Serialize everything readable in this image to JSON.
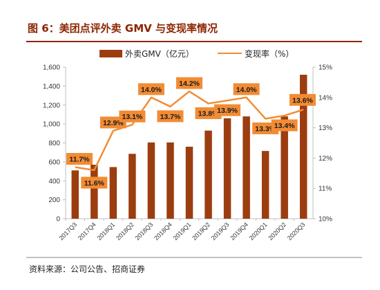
{
  "header": {
    "title": "图 6：美团点评外卖 GMV 与变现率情况",
    "source": "资料来源：公司公告、招商证券"
  },
  "colors": {
    "title": "#8b2500",
    "rule": "#8b2500",
    "bar": "#9c3d10",
    "line": "#f28c34",
    "label_bg": "#f28c34",
    "axis": "#bfbfbf"
  },
  "chart_data": {
    "type": "bar",
    "title": "",
    "categories": [
      "2017Q3",
      "2017Q4",
      "2018Q1",
      "2018Q2",
      "2018Q3",
      "2018Q4",
      "2019Q1",
      "2019Q2",
      "2019Q3",
      "2019Q4",
      "2020Q1",
      "2020Q2",
      "2020Q3"
    ],
    "series": [
      {
        "name": "外卖GMV（亿元）",
        "type": "bar",
        "axis": "left",
        "values": [
          510,
          570,
          545,
          685,
          805,
          805,
          760,
          930,
          1060,
          1080,
          715,
          1080,
          1520
        ]
      },
      {
        "name": "变现率（%）",
        "type": "line",
        "axis": "right",
        "values": [
          11.7,
          11.6,
          12.9,
          13.1,
          14.0,
          13.7,
          14.2,
          13.8,
          13.9,
          14.0,
          13.3,
          13.4,
          13.6
        ],
        "labels": [
          "11.7%",
          "11.6%",
          "12.9%",
          "13.1%",
          "14.0%",
          "13.7%",
          "14.2%",
          "13.8%",
          "13.9%",
          "14.0%",
          "13.3%",
          "13.4%",
          "13.6%"
        ]
      }
    ],
    "y_left": {
      "ticks": [
        "0",
        "200",
        "400",
        "600",
        "800",
        "1,000",
        "1,200",
        "1,400",
        "1,600"
      ],
      "range": [
        0,
        1600
      ]
    },
    "y_right": {
      "ticks": [
        "10%",
        "11%",
        "12%",
        "13%",
        "14%",
        "15%"
      ],
      "range": [
        10,
        15
      ]
    },
    "legend": {
      "position": "top-center",
      "entries": [
        "外卖GMV（亿元）",
        "变现率（%）"
      ]
    },
    "grid": false
  }
}
